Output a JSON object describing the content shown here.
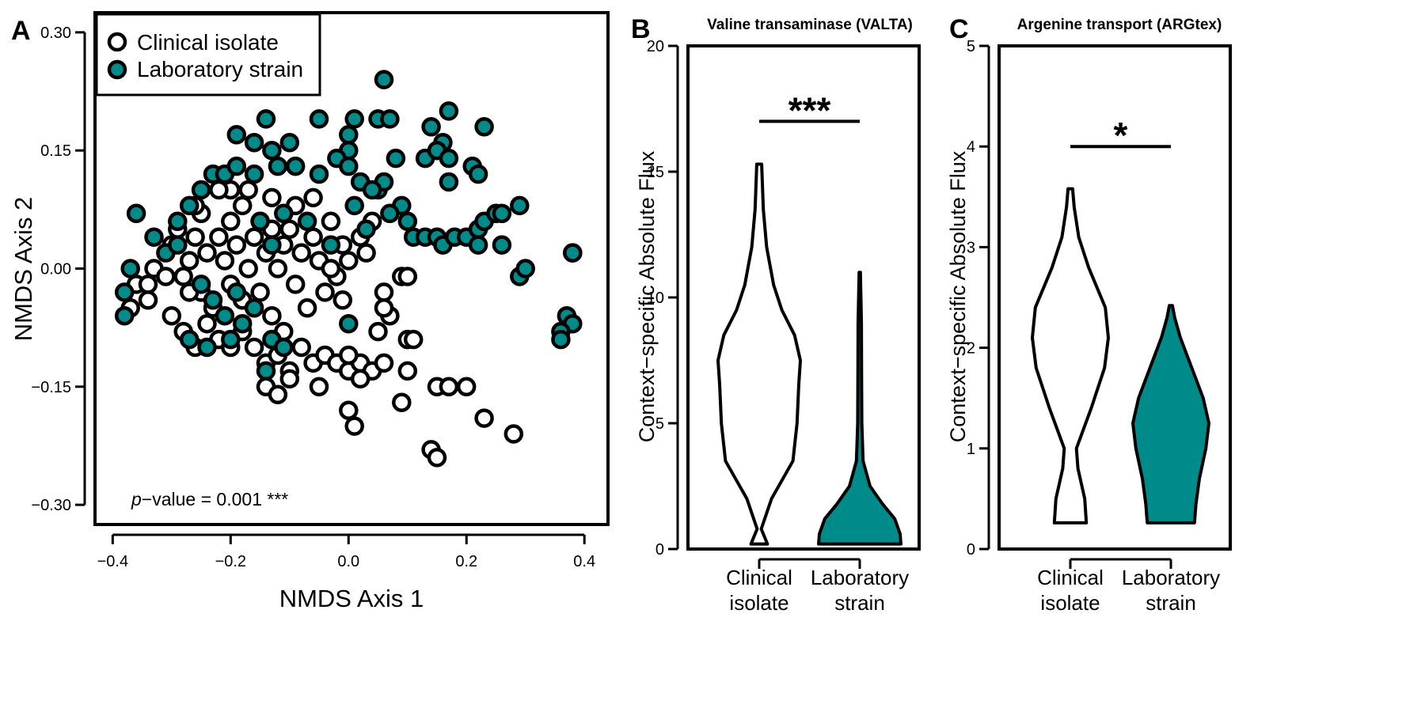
{
  "colors": {
    "clinical": "#ffffff",
    "laboratory": "#008b8b",
    "stroke": "#000000",
    "clinical_fill_inner": "#e6e6e6"
  },
  "panels": {
    "A": {
      "letter": "A"
    },
    "B": {
      "letter": "B",
      "title": "Valine transaminase (VALTA)"
    },
    "C": {
      "letter": "C",
      "title": "Argenine transport (ARGtex)"
    }
  },
  "chart_data": [
    {
      "type": "scatter",
      "panel": "A",
      "xlabel": "NMDS Axis 1",
      "ylabel": "NMDS Axis 2",
      "xlim": [
        -0.43,
        0.44
      ],
      "ylim": [
        -0.325,
        0.325
      ],
      "xticks": [
        "−0.4",
        "−0.2",
        "0.0",
        "0.2",
        "0.4"
      ],
      "xtick_values": [
        -0.4,
        -0.2,
        0.0,
        0.2,
        0.4
      ],
      "yticks": [
        "0.30",
        "0.15",
        "0.00",
        "−0.15",
        "−0.30"
      ],
      "ytick_values": [
        0.3,
        0.15,
        0.0,
        -0.15,
        -0.3
      ],
      "legend": {
        "position": "top-left",
        "entries": [
          "Clinical isolate",
          "Laboratory strain"
        ]
      },
      "annotation": {
        "p_label": "p",
        "text": "−value = 0.001 ***"
      },
      "series": [
        {
          "name": "Clinical isolate",
          "points": [
            [
              -0.37,
              -0.05
            ],
            [
              -0.36,
              -0.02
            ],
            [
              -0.34,
              -0.04
            ],
            [
              -0.33,
              0.0
            ],
            [
              -0.31,
              -0.01
            ],
            [
              -0.3,
              0.03
            ],
            [
              -0.29,
              0.05
            ],
            [
              -0.28,
              -0.01
            ],
            [
              -0.27,
              0.01
            ],
            [
              -0.26,
              0.04
            ],
            [
              -0.25,
              -0.03
            ],
            [
              -0.25,
              0.07
            ],
            [
              -0.24,
              0.02
            ],
            [
              -0.23,
              -0.05
            ],
            [
              -0.22,
              0.04
            ],
            [
              -0.21,
              0.01
            ],
            [
              -0.2,
              -0.02
            ],
            [
              -0.2,
              0.06
            ],
            [
              -0.19,
              0.03
            ],
            [
              -0.18,
              -0.04
            ],
            [
              -0.18,
              0.08
            ],
            [
              -0.17,
              0.0
            ],
            [
              -0.16,
              0.04
            ],
            [
              -0.15,
              -0.03
            ],
            [
              -0.15,
              0.06
            ],
            [
              -0.14,
              0.02
            ],
            [
              -0.13,
              -0.06
            ],
            [
              -0.13,
              0.05
            ],
            [
              -0.12,
              0.0
            ],
            [
              -0.11,
              0.03
            ],
            [
              -0.11,
              -0.08
            ],
            [
              -0.1,
              0.05
            ],
            [
              -0.09,
              -0.02
            ],
            [
              -0.08,
              0.02
            ],
            [
              -0.07,
              -0.05
            ],
            [
              -0.06,
              0.04
            ],
            [
              -0.05,
              0.01
            ],
            [
              -0.04,
              -0.03
            ],
            [
              -0.03,
              0.06
            ],
            [
              -0.02,
              -0.01
            ],
            [
              -0.01,
              0.03
            ],
            [
              0.0,
              0.01
            ],
            [
              0.02,
              0.04
            ],
            [
              0.03,
              0.02
            ],
            [
              0.04,
              0.06
            ],
            [
              0.06,
              -0.03
            ],
            [
              0.07,
              -0.06
            ],
            [
              0.09,
              -0.01
            ],
            [
              0.1,
              -0.09
            ],
            [
              0.11,
              -0.09
            ],
            [
              -0.28,
              -0.08
            ],
            [
              -0.26,
              -0.1
            ],
            [
              -0.24,
              -0.07
            ],
            [
              -0.22,
              -0.09
            ],
            [
              -0.2,
              -0.1
            ],
            [
              -0.18,
              -0.08
            ],
            [
              -0.16,
              -0.1
            ],
            [
              -0.14,
              -0.12
            ],
            [
              -0.12,
              -0.11
            ],
            [
              -0.1,
              -0.13
            ],
            [
              -0.08,
              -0.1
            ],
            [
              -0.06,
              -0.12
            ],
            [
              -0.04,
              -0.11
            ],
            [
              -0.02,
              -0.12
            ],
            [
              0.0,
              -0.13
            ],
            [
              0.02,
              -0.12
            ],
            [
              0.04,
              -0.13
            ],
            [
              0.06,
              -0.12
            ],
            [
              0.1,
              -0.13
            ],
            [
              -0.14,
              -0.15
            ],
            [
              -0.12,
              -0.16
            ],
            [
              -0.1,
              -0.14
            ],
            [
              -0.05,
              -0.15
            ],
            [
              0.02,
              -0.14
            ],
            [
              0.09,
              -0.17
            ],
            [
              0.15,
              -0.15
            ],
            [
              0.17,
              -0.15
            ],
            [
              0.2,
              -0.15
            ],
            [
              0.0,
              -0.18
            ],
            [
              0.01,
              -0.2
            ],
            [
              0.23,
              -0.19
            ],
            [
              0.28,
              -0.21
            ],
            [
              0.14,
              -0.23
            ],
            [
              0.15,
              -0.24
            ],
            [
              -0.06,
              0.09
            ],
            [
              -0.13,
              0.09
            ],
            [
              -0.2,
              0.1
            ],
            [
              -0.26,
              0.08
            ],
            [
              0.0,
              -0.11
            ],
            [
              0.1,
              -0.01
            ],
            [
              -0.22,
              0.1
            ],
            [
              -0.17,
              0.1
            ],
            [
              -0.09,
              0.08
            ],
            [
              -0.03,
              0.0
            ],
            [
              -0.01,
              -0.04
            ],
            [
              -0.34,
              -0.02
            ],
            [
              -0.3,
              -0.06
            ],
            [
              -0.27,
              -0.03
            ],
            [
              0.05,
              -0.08
            ],
            [
              0.06,
              -0.05
            ]
          ]
        },
        {
          "name": "Laboratory strain",
          "points": [
            [
              0.06,
              0.24
            ],
            [
              0.17,
              0.2
            ],
            [
              0.05,
              0.19
            ],
            [
              0.07,
              0.19
            ],
            [
              0.14,
              0.18
            ],
            [
              0.23,
              0.18
            ],
            [
              0.16,
              0.16
            ],
            [
              0.13,
              0.14
            ],
            [
              0.15,
              0.15
            ],
            [
              0.17,
              0.14
            ],
            [
              0.21,
              0.13
            ],
            [
              0.22,
              0.12
            ],
            [
              0.17,
              0.11
            ],
            [
              0.0,
              0.17
            ],
            [
              0.0,
              0.15
            ],
            [
              -0.1,
              0.16
            ],
            [
              -0.14,
              0.19
            ],
            [
              -0.19,
              0.17
            ],
            [
              -0.16,
              0.16
            ],
            [
              -0.13,
              0.15
            ],
            [
              -0.05,
              0.19
            ],
            [
              0.01,
              0.19
            ],
            [
              0.08,
              0.14
            ],
            [
              0.05,
              0.1
            ],
            [
              0.06,
              0.11
            ],
            [
              0.09,
              0.08
            ],
            [
              0.1,
              0.06
            ],
            [
              0.11,
              0.04
            ],
            [
              0.13,
              0.04
            ],
            [
              0.15,
              0.04
            ],
            [
              0.16,
              0.03
            ],
            [
              0.18,
              0.04
            ],
            [
              0.2,
              0.04
            ],
            [
              0.22,
              0.05
            ],
            [
              0.23,
              0.06
            ],
            [
              0.25,
              0.07
            ],
            [
              0.26,
              0.07
            ],
            [
              0.29,
              0.08
            ],
            [
              0.22,
              0.03
            ],
            [
              0.26,
              0.03
            ],
            [
              0.29,
              -0.01
            ],
            [
              0.3,
              0.0
            ],
            [
              0.38,
              0.02
            ],
            [
              0.38,
              0.02
            ],
            [
              0.37,
              -0.06
            ],
            [
              0.38,
              -0.07
            ],
            [
              0.36,
              -0.08
            ],
            [
              0.36,
              -0.09
            ],
            [
              0.0,
              -0.07
            ],
            [
              -0.36,
              0.07
            ],
            [
              -0.33,
              0.04
            ],
            [
              -0.37,
              0.0
            ],
            [
              -0.38,
              -0.03
            ],
            [
              -0.38,
              -0.06
            ],
            [
              -0.31,
              0.02
            ],
            [
              -0.29,
              0.06
            ],
            [
              -0.27,
              0.08
            ],
            [
              -0.25,
              0.1
            ],
            [
              -0.23,
              0.12
            ],
            [
              -0.21,
              0.12
            ],
            [
              -0.19,
              0.13
            ],
            [
              -0.16,
              0.12
            ],
            [
              -0.12,
              0.13
            ],
            [
              -0.09,
              0.13
            ],
            [
              -0.05,
              0.12
            ],
            [
              -0.02,
              0.14
            ],
            [
              0.0,
              0.13
            ],
            [
              0.02,
              0.11
            ],
            [
              0.04,
              0.1
            ],
            [
              -0.25,
              -0.02
            ],
            [
              -0.23,
              -0.04
            ],
            [
              -0.21,
              -0.06
            ],
            [
              -0.18,
              -0.07
            ],
            [
              -0.16,
              -0.05
            ],
            [
              -0.13,
              -0.09
            ],
            [
              -0.11,
              -0.1
            ],
            [
              -0.14,
              -0.13
            ],
            [
              -0.24,
              -0.1
            ],
            [
              -0.2,
              -0.09
            ],
            [
              -0.29,
              0.03
            ],
            [
              -0.15,
              0.06
            ],
            [
              -0.11,
              0.07
            ],
            [
              -0.07,
              0.06
            ],
            [
              -0.03,
              0.03
            ],
            [
              0.01,
              0.08
            ],
            [
              -0.13,
              0.03
            ],
            [
              -0.27,
              -0.09
            ],
            [
              -0.19,
              -0.03
            ],
            [
              0.03,
              0.05
            ],
            [
              0.07,
              0.07
            ]
          ]
        }
      ]
    },
    {
      "type": "violin",
      "panel": "B",
      "title": "Valine transaminase (VALTA)",
      "ylabel": "Context−specific Absolute Flux",
      "ylim": [
        0,
        20
      ],
      "yticks": [
        "0",
        "5",
        "10",
        "15",
        "20"
      ],
      "ytick_values": [
        0,
        5,
        10,
        15,
        20
      ],
      "categories": [
        "Clinical\nisolate",
        "Laboratory\nstrain"
      ],
      "category_lines": [
        [
          "Clinical",
          "isolate"
        ],
        [
          "Laboratory",
          "strain"
        ]
      ],
      "significance": "***",
      "violins": [
        {
          "name": "Clinical isolate",
          "ymin": 0.2,
          "ymax": 15.3,
          "profile": [
            [
              0.2,
              0.2
            ],
            [
              0.8,
              0.05
            ],
            [
              2.0,
              0.3
            ],
            [
              3.5,
              0.82
            ],
            [
              5.0,
              0.92
            ],
            [
              6.5,
              0.96
            ],
            [
              7.5,
              1.0
            ],
            [
              8.5,
              0.86
            ],
            [
              9.5,
              0.55
            ],
            [
              10.5,
              0.35
            ],
            [
              12.0,
              0.18
            ],
            [
              13.5,
              0.1
            ],
            [
              15.3,
              0.06
            ]
          ]
        },
        {
          "name": "Laboratory strain",
          "ymin": 0.2,
          "ymax": 11.0,
          "profile": [
            [
              0.2,
              1.0
            ],
            [
              0.6,
              0.98
            ],
            [
              1.2,
              0.85
            ],
            [
              1.8,
              0.55
            ],
            [
              2.5,
              0.25
            ],
            [
              3.5,
              0.08
            ],
            [
              5.0,
              0.05
            ],
            [
              7.0,
              0.045
            ],
            [
              9.0,
              0.04
            ],
            [
              10.2,
              0.025
            ],
            [
              11.0,
              0.015
            ]
          ]
        }
      ]
    },
    {
      "type": "violin",
      "panel": "C",
      "title": "Argenine transport (ARGtex)",
      "ylabel": "Context−specific Absolute Flux",
      "ylim": [
        0,
        5
      ],
      "yticks": [
        "0",
        "1",
        "2",
        "3",
        "4",
        "5"
      ],
      "ytick_values": [
        0,
        1,
        2,
        3,
        4,
        5
      ],
      "categories": [
        "Clinical\nisolate",
        "Laboratory\nstrain"
      ],
      "category_lines": [
        [
          "Clinical",
          "isolate"
        ],
        [
          "Laboratory",
          "strain"
        ]
      ],
      "significance": "*",
      "violins": [
        {
          "name": "Clinical isolate",
          "ymin": 0.26,
          "ymax": 3.58,
          "profile": [
            [
              0.26,
              0.42
            ],
            [
              0.5,
              0.38
            ],
            [
              0.8,
              0.2
            ],
            [
              1.0,
              0.16
            ],
            [
              1.4,
              0.55
            ],
            [
              1.8,
              0.9
            ],
            [
              2.1,
              1.0
            ],
            [
              2.4,
              0.92
            ],
            [
              2.8,
              0.48
            ],
            [
              3.1,
              0.22
            ],
            [
              3.4,
              0.1
            ],
            [
              3.58,
              0.06
            ]
          ]
        },
        {
          "name": "Laboratory strain",
          "ymin": 0.26,
          "ymax": 2.42,
          "profile": [
            [
              0.26,
              0.62
            ],
            [
              0.45,
              0.66
            ],
            [
              0.7,
              0.75
            ],
            [
              1.0,
              0.92
            ],
            [
              1.25,
              1.0
            ],
            [
              1.5,
              0.85
            ],
            [
              1.8,
              0.55
            ],
            [
              2.1,
              0.25
            ],
            [
              2.3,
              0.1
            ],
            [
              2.42,
              0.04
            ]
          ]
        }
      ]
    }
  ]
}
